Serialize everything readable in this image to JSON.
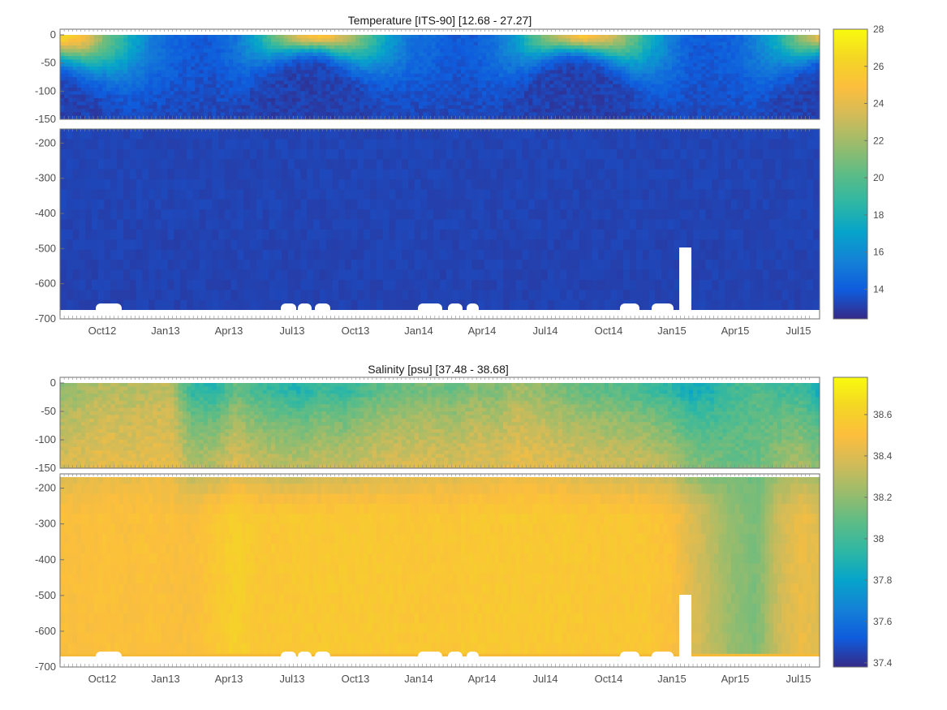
{
  "chart_data": [
    {
      "type": "heatmap",
      "title": "Temperature [ITS-90]   [12.68 - 27.27]",
      "variable": "Temperature",
      "units": "ITS-90",
      "data_range": [
        12.68,
        27.27
      ],
      "xlabel": "",
      "ylabel": "",
      "x_tick_labels": [
        "Oct12",
        "Jan13",
        "Apr13",
        "Jul13",
        "Oct13",
        "Jan14",
        "Apr14",
        "Jul14",
        "Oct14",
        "Jan15",
        "Apr15",
        "Jul15"
      ],
      "x_range": [
        "2012-08",
        "2015-08"
      ],
      "upper_panel": {
        "ylim": [
          -150,
          0
        ],
        "y_ticks": [
          0,
          -50,
          -100,
          -150
        ]
      },
      "lower_panel": {
        "ylim": [
          -700,
          -160
        ],
        "y_ticks": [
          -200,
          -300,
          -400,
          -500,
          -600,
          -700
        ]
      },
      "colorbar": {
        "range": [
          12.4,
          28
        ],
        "ticks": [
          14,
          16,
          18,
          20,
          22,
          24,
          26,
          28
        ],
        "colormap": "parula"
      },
      "surface_profile": {
        "months": [
          "2012-08",
          "2012-09",
          "2012-10",
          "2012-11",
          "2012-12",
          "2013-01",
          "2013-02",
          "2013-03",
          "2013-04",
          "2013-05",
          "2013-06",
          "2013-07",
          "2013-08",
          "2013-09",
          "2013-10",
          "2013-11",
          "2013-12",
          "2014-01",
          "2014-02",
          "2014-03",
          "2014-04",
          "2014-05",
          "2014-06",
          "2014-07",
          "2014-08",
          "2014-09",
          "2014-10",
          "2014-11",
          "2014-12",
          "2015-01",
          "2015-02",
          "2015-03",
          "2015-04",
          "2015-05",
          "2015-06",
          "2015-07"
        ],
        "surface_temp": [
          26.5,
          24.5,
          21,
          18,
          15.5,
          14.5,
          14,
          14,
          15,
          17.5,
          21,
          24.5,
          25.5,
          23,
          20,
          17,
          15,
          14.5,
          14,
          14,
          15,
          17,
          20.5,
          23.5,
          25.5,
          24,
          21.5,
          18,
          15.5,
          14,
          14,
          14.3,
          15.5,
          18,
          21.5,
          24.5
        ],
        "mixed_layer_depth_m": [
          -45,
          -60,
          -75,
          -95,
          -110,
          -120,
          -130,
          -130,
          -100,
          -60,
          -40,
          -30,
          -30,
          -45,
          -65,
          -85,
          -105,
          -120,
          -130,
          -130,
          -110,
          -70,
          -45,
          -30,
          -30,
          -40,
          -60,
          -85,
          -110,
          -140,
          -150,
          -145,
          -110,
          -70,
          -50,
          -35
        ],
        "deep_temp": 13.1
      }
    },
    {
      "type": "heatmap",
      "title": "Salinity [psu]   [37.48 - 38.68]",
      "variable": "Salinity",
      "units": "psu",
      "data_range": [
        37.48,
        38.68
      ],
      "xlabel": "",
      "ylabel": "",
      "x_tick_labels": [
        "Oct12",
        "Jan13",
        "Apr13",
        "Jul13",
        "Oct13",
        "Jan14",
        "Apr14",
        "Jul14",
        "Oct14",
        "Jan15",
        "Apr15",
        "Jul15"
      ],
      "x_range": [
        "2012-08",
        "2015-08"
      ],
      "upper_panel": {
        "ylim": [
          -150,
          0
        ],
        "y_ticks": [
          0,
          -50,
          -100,
          -150
        ]
      },
      "lower_panel": {
        "ylim": [
          -700,
          -160
        ],
        "y_ticks": [
          -200,
          -300,
          -400,
          -500,
          -600,
          -700
        ]
      },
      "colorbar": {
        "range": [
          37.38,
          38.78
        ],
        "ticks": [
          37.4,
          37.6,
          37.8,
          38,
          38.2,
          38.4,
          38.6
        ],
        "colormap": "parula"
      },
      "surface_profile": {
        "months": [
          "2012-08",
          "2012-09",
          "2012-10",
          "2012-11",
          "2012-12",
          "2013-01",
          "2013-02",
          "2013-03",
          "2013-04",
          "2013-05",
          "2013-06",
          "2013-07",
          "2013-08",
          "2013-09",
          "2013-10",
          "2013-11",
          "2013-12",
          "2014-01",
          "2014-02",
          "2014-03",
          "2014-04",
          "2014-05",
          "2014-06",
          "2014-07",
          "2014-08",
          "2014-09",
          "2014-10",
          "2014-11",
          "2014-12",
          "2015-01",
          "2015-02",
          "2015-03",
          "2015-04",
          "2015-05",
          "2015-06",
          "2015-07"
        ],
        "surface_salinity": [
          38.2,
          38.25,
          38.3,
          38.28,
          38.3,
          38.32,
          37.95,
          37.92,
          38.1,
          38.0,
          37.95,
          37.9,
          38.0,
          37.95,
          38.05,
          38.1,
          38.12,
          38.15,
          38.1,
          38.18,
          38.15,
          38.25,
          38.2,
          38.15,
          38.1,
          38.08,
          38.05,
          38.0,
          37.95,
          37.85,
          37.9,
          38.0,
          38.05,
          38.0,
          37.98,
          37.85
        ],
        "deep_salinity": [
          38.5,
          38.5,
          38.52,
          38.5,
          38.52,
          38.5,
          38.5,
          38.55,
          38.6,
          38.55,
          38.55,
          38.56,
          38.56,
          38.56,
          38.56,
          38.56,
          38.55,
          38.55,
          38.55,
          38.56,
          38.56,
          38.56,
          38.56,
          38.56,
          38.55,
          38.55,
          38.55,
          38.55,
          38.52,
          38.4,
          38.3,
          38.2,
          38.15,
          38.35,
          38.45,
          38.4
        ]
      }
    }
  ]
}
